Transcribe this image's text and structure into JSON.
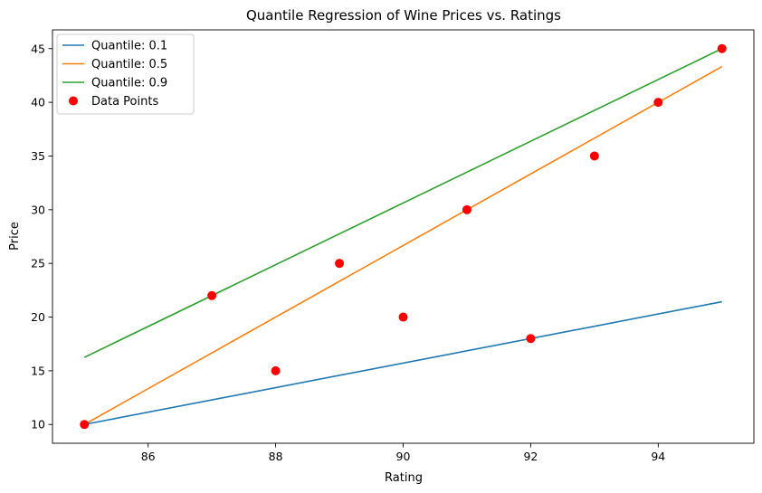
{
  "chart_data": {
    "type": "line",
    "title": "Quantile Regression of Wine Prices vs. Ratings",
    "xlabel": "Rating",
    "ylabel": "Price",
    "xlim": [
      84.5,
      95.5
    ],
    "ylim": [
      8.25,
      46.75
    ],
    "xticks": [
      86,
      88,
      90,
      92,
      94
    ],
    "yticks": [
      10,
      15,
      20,
      25,
      30,
      35,
      40,
      45
    ],
    "grid": false,
    "legend_position": "top-left",
    "series": [
      {
        "name": "Quantile: 0.1",
        "color": "#1f77b4",
        "x": [
          85,
          95
        ],
        "y": [
          10.0,
          21.43
        ]
      },
      {
        "name": "Quantile: 0.5",
        "color": "#ff7f0e",
        "x": [
          85,
          95
        ],
        "y": [
          10.0,
          43.33
        ]
      },
      {
        "name": "Quantile: 0.9",
        "color": "#2ca02c",
        "x": [
          85,
          95
        ],
        "y": [
          16.25,
          45.0
        ]
      }
    ],
    "scatter": {
      "name": "Data Points",
      "color": "#ff0000",
      "x": [
        85,
        87,
        88,
        89,
        90,
        91,
        92,
        93,
        94,
        95
      ],
      "y": [
        10,
        22,
        15,
        25,
        20,
        30,
        18,
        35,
        40,
        45
      ]
    }
  }
}
